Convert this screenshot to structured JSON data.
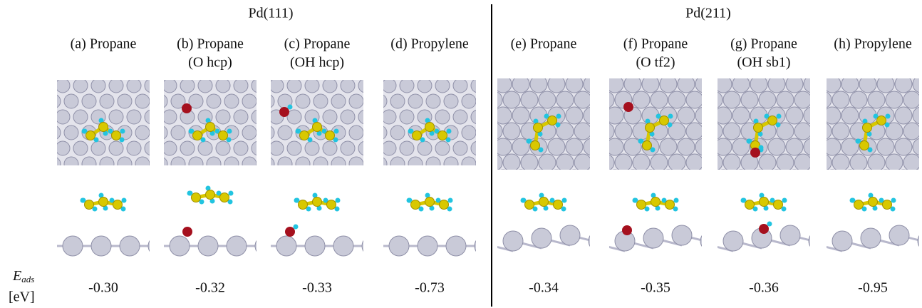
{
  "energy_label": {
    "symbol": "E",
    "subscript": "ads",
    "unit": "[eV]"
  },
  "groups": [
    {
      "title": "Pd(111)",
      "panels": [
        {
          "label": [
            "(a) Propane"
          ],
          "energy": "-0.30"
        },
        {
          "label": [
            "(b) Propane",
            "(O hcp)"
          ],
          "energy": "-0.32"
        },
        {
          "label": [
            "(c) Propane",
            "(OH hcp)"
          ],
          "energy": "-0.33"
        },
        {
          "label": [
            "(d) Propylene"
          ],
          "energy": "-0.73"
        }
      ]
    },
    {
      "title": "Pd(211)",
      "panels": [
        {
          "label": [
            "(e) Propane"
          ],
          "energy": "-0.34"
        },
        {
          "label": [
            "(f) Propane",
            "(O tf2)"
          ],
          "energy": "-0.35"
        },
        {
          "label": [
            "(g) Propane",
            "(OH sb1)"
          ],
          "energy": "-0.36"
        },
        {
          "label": [
            "(h) Propylene"
          ],
          "energy": "-0.95"
        }
      ]
    }
  ]
}
